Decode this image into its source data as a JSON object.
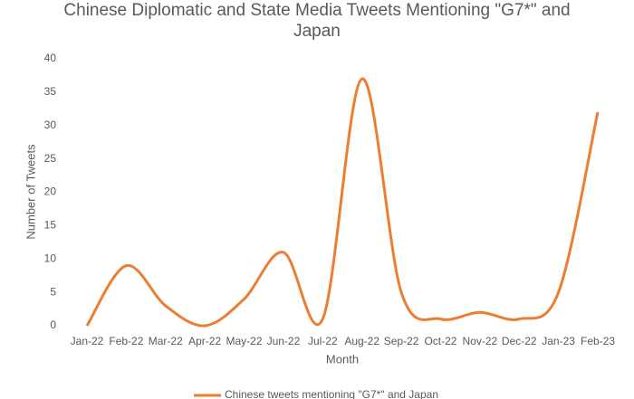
{
  "chart_data": {
    "type": "line",
    "title": "Chinese Diplomatic and State Media Tweets Mentioning \"G7*\" and Japan",
    "x_label": "Month",
    "y_label": "Number of Tweets",
    "categories": [
      "Jan-22",
      "Feb-22",
      "Mar-22",
      "Apr-22",
      "May-22",
      "Jun-22",
      "Jul-22",
      "Aug-22",
      "Sep-22",
      "Oct-22",
      "Nov-22",
      "Dec-22",
      "Jan-23",
      "Feb-23"
    ],
    "series": [
      {
        "name": "Chinese tweets mentioning \"G7*\" and Japan",
        "color": "#ed7d31",
        "values": [
          0,
          9,
          3,
          0,
          4,
          11,
          1,
          37,
          5,
          1,
          2,
          1,
          5,
          32
        ]
      }
    ],
    "ylim": [
      0,
      40
    ],
    "yticks": [
      0,
      5,
      10,
      15,
      20,
      25,
      30,
      35,
      40
    ],
    "grid": false,
    "smooth": true,
    "legend": "bottom"
  }
}
